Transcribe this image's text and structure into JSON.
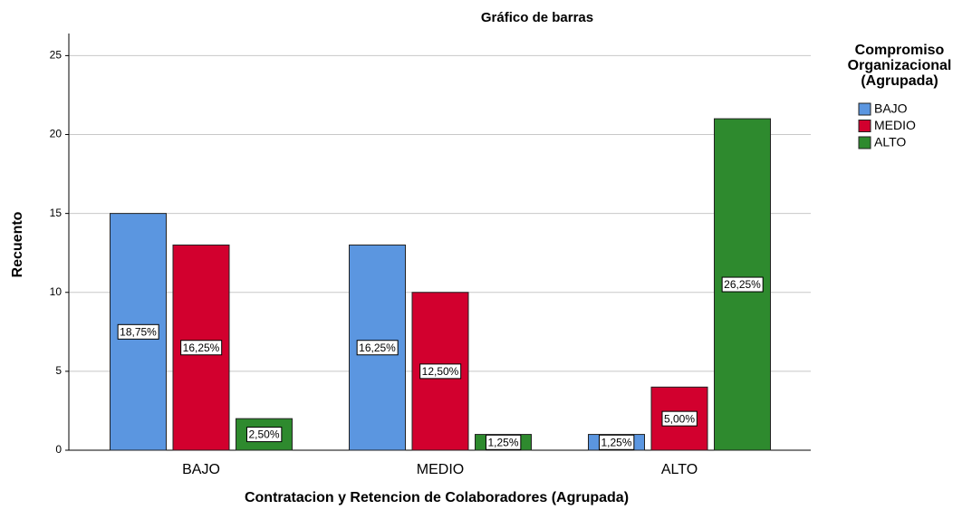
{
  "chart_data": {
    "type": "bar",
    "title": "Gráfico de barras",
    "x_label": "Contratacion y Retencion de Colaboradores (Agrupada)",
    "y_label": "Recuento",
    "legend_title": [
      "Compromiso",
      "Organizacional",
      "(Agrupada)"
    ],
    "legend_position": "right",
    "categories": [
      "BAJO",
      "MEDIO",
      "ALTO"
    ],
    "series": [
      {
        "name": "BAJO",
        "color": "#5b96e0",
        "values": [
          15,
          13,
          1
        ],
        "data_labels": [
          "18,75%",
          "16,25%",
          "1,25%"
        ]
      },
      {
        "name": "MEDIO",
        "color": "#d2002e",
        "values": [
          13,
          10,
          4
        ],
        "data_labels": [
          "16,25%",
          "12,50%",
          "5,00%"
        ]
      },
      {
        "name": "ALTO",
        "color": "#2e8a2e",
        "values": [
          2,
          1,
          21
        ],
        "data_labels": [
          "2,50%",
          "1,25%",
          "26,25%"
        ]
      }
    ],
    "ylim": [
      0,
      26.4
    ],
    "yticks": [
      0,
      5,
      10,
      15,
      20,
      25
    ],
    "grid": true
  }
}
